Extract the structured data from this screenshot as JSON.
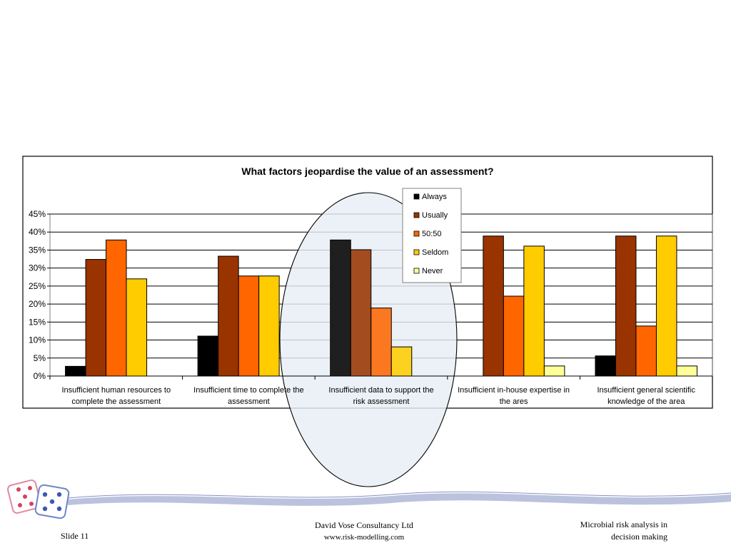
{
  "chart_data": {
    "type": "bar",
    "title": "What factors jeopardise the value of an assessment?",
    "categories": [
      [
        "Insufficient human resources to",
        "complete the assessment"
      ],
      [
        "Insufficient time to complete the",
        "assessment"
      ],
      [
        "Insufficient data to support the",
        "risk assessment"
      ],
      [
        "Insufficient in-house expertise in",
        "the ares"
      ],
      [
        "Insufficient general scientific",
        "knowledge of the area"
      ]
    ],
    "series": [
      {
        "name": "Always",
        "color": "#000000",
        "values": [
          2.7,
          11.1,
          37.8,
          0,
          5.6
        ]
      },
      {
        "name": "Usually",
        "color": "#993300",
        "values": [
          32.4,
          33.3,
          35.1,
          38.9,
          38.9
        ]
      },
      {
        "name": "50:50",
        "color": "#FF6600",
        "values": [
          37.8,
          27.8,
          18.9,
          22.2,
          13.9
        ]
      },
      {
        "name": "Seldom",
        "color": "#FFCC00",
        "values": [
          27.0,
          27.8,
          8.1,
          36.1,
          38.9
        ]
      },
      {
        "name": "Never",
        "color": "#FFFF99",
        "values": [
          0,
          0,
          0,
          2.8,
          2.8
        ]
      }
    ],
    "ylim": [
      0,
      45
    ],
    "yticks": [
      "0%",
      "5%",
      "10%",
      "15%",
      "20%",
      "25%",
      "30%",
      "35%",
      "40%",
      "45%"
    ],
    "grid": true,
    "legend_position": "top-right of center",
    "highlighted_category_index": 2,
    "highlight_color": "#E6EEF4"
  },
  "footer": {
    "slide_number": "Slide 11",
    "company": "David Vose Consultancy Ltd",
    "website": "www.risk-modelling.com",
    "subject_line1": "Microbial risk analysis in",
    "subject_line2": "decision making"
  },
  "logo": {
    "icon": "dice-logo-icon"
  }
}
